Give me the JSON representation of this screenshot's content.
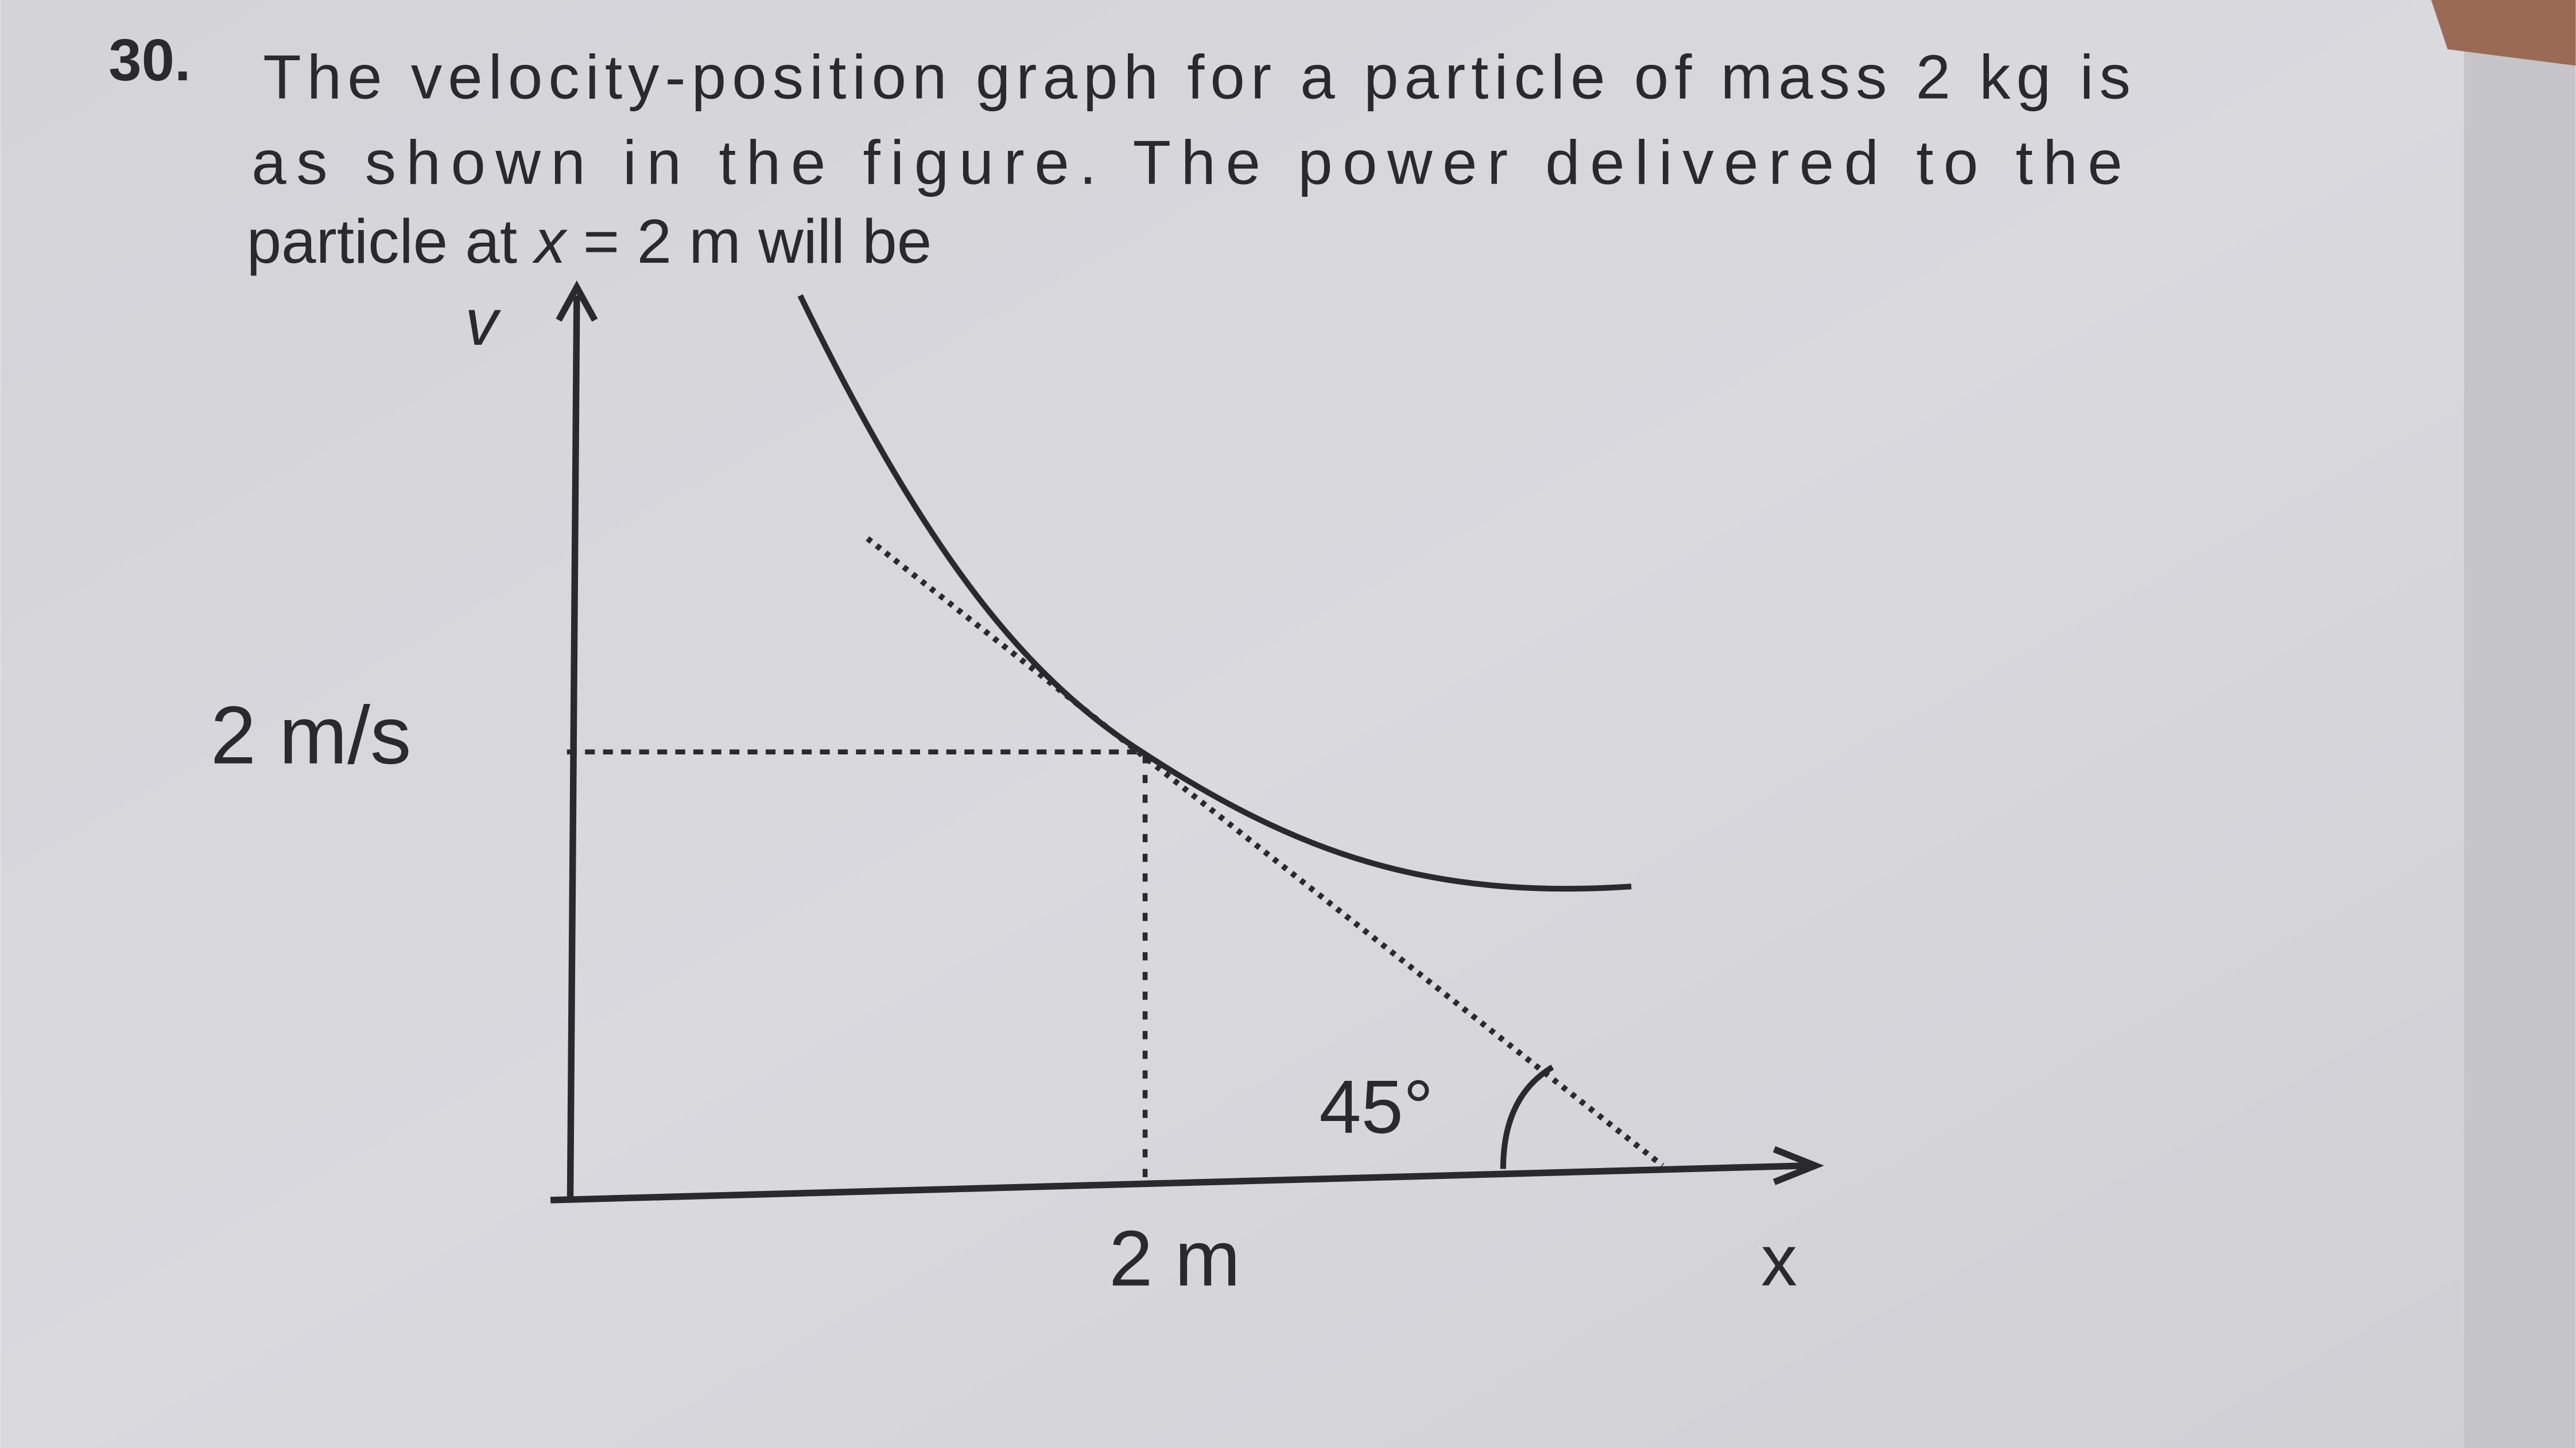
{
  "question": {
    "number": "30.",
    "lines": [
      "The velocity-position graph for a particle of mass 2 kg is",
      "as shown in the figure. The power delivered to the"
    ],
    "last_line": {
      "before": "particle at ",
      "variable": "x",
      "after": " = 2 m will be"
    }
  },
  "figure": {
    "y_axis_label": "v",
    "x_axis_label": "x",
    "y_mark_label": "2 m/s",
    "x_mark_label": "2 m",
    "angle_label": "45°"
  }
}
